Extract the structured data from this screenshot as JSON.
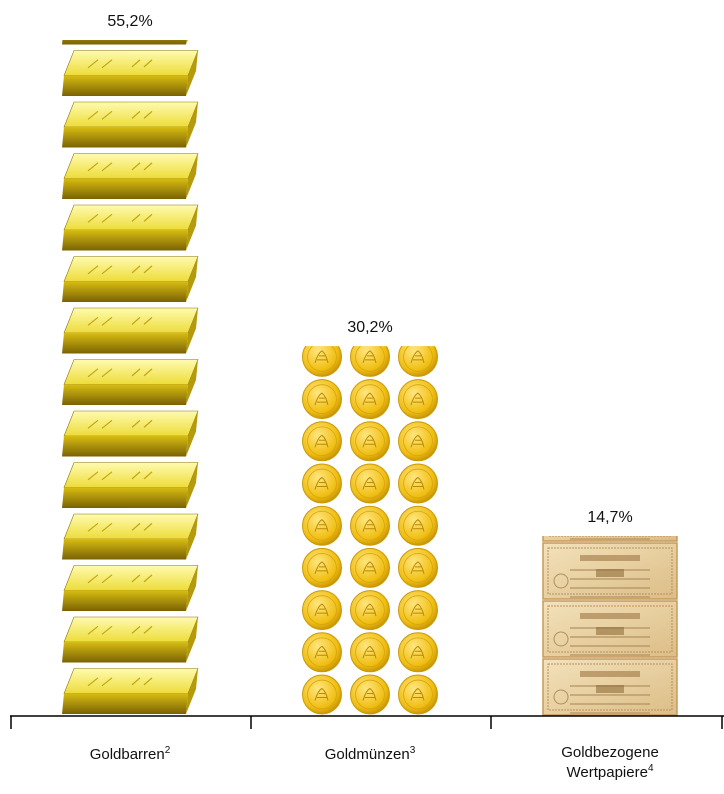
{
  "chart_data": {
    "type": "bar",
    "categories": [
      "Goldbarren",
      "Goldmünzen",
      "Goldbezogene Wertpapiere"
    ],
    "footnotes": [
      "2",
      "3",
      "4"
    ],
    "values": [
      55.2,
      30.2,
      14.7
    ],
    "value_labels": [
      "55,2%",
      "30,2%",
      "14,7%"
    ],
    "title": "",
    "xlabel": "",
    "ylabel": "",
    "ylim": [
      0,
      55.2
    ],
    "grid": false,
    "bar_styles": [
      "gold-bar-icons",
      "gold-coin-icons",
      "certificate-icons"
    ],
    "colors": {
      "gold_light": "#fff27a",
      "gold_mid": "#e8cf1e",
      "gold_dark": "#8a7405",
      "coin_face": "#f2c41a",
      "coin_rim": "#c99a08",
      "paper": "#e9d1a3",
      "paper_border": "#c79a5c",
      "axis": "#000000"
    }
  }
}
